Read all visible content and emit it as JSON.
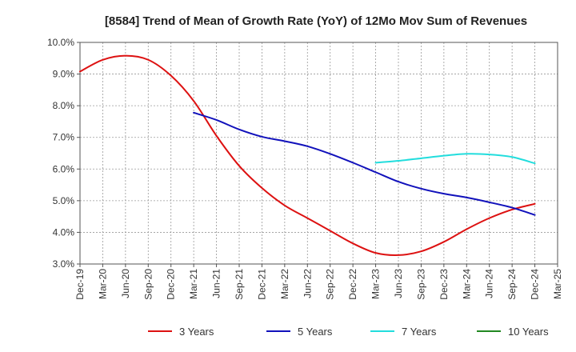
{
  "chart_data": {
    "type": "line",
    "title": "[8584]  Trend of Mean of Growth Rate (YoY) of 12Mo Mov Sum of Revenues",
    "xlabel": "",
    "ylabel": "",
    "categories": [
      "Dec-19",
      "Mar-20",
      "Jun-20",
      "Sep-20",
      "Dec-20",
      "Mar-21",
      "Jun-21",
      "Sep-21",
      "Dec-21",
      "Mar-22",
      "Jun-22",
      "Sep-22",
      "Dec-22",
      "Mar-23",
      "Jun-23",
      "Sep-23",
      "Dec-23",
      "Mar-24",
      "Jun-24",
      "Sep-24",
      "Dec-24",
      "Mar-25"
    ],
    "ylim": [
      3.0,
      10.0
    ],
    "yticks": [
      3.0,
      4.0,
      5.0,
      6.0,
      7.0,
      8.0,
      9.0,
      10.0
    ],
    "ytick_labels": [
      "3.0%",
      "4.0%",
      "5.0%",
      "6.0%",
      "7.0%",
      "8.0%",
      "9.0%",
      "10.0%"
    ],
    "grid": true,
    "legend_position": "bottom",
    "series": [
      {
        "name": "3 Years",
        "color": "#dd1111",
        "values": [
          9.08,
          9.45,
          9.58,
          9.45,
          8.95,
          8.15,
          7.05,
          6.1,
          5.4,
          4.85,
          4.45,
          4.05,
          3.65,
          3.35,
          3.28,
          3.4,
          3.7,
          4.1,
          4.45,
          4.72,
          4.9,
          null
        ]
      },
      {
        "name": "5 Years",
        "color": "#1111bb",
        "values": [
          null,
          null,
          null,
          null,
          null,
          7.78,
          7.55,
          7.25,
          7.02,
          6.88,
          6.72,
          6.48,
          6.2,
          5.9,
          5.6,
          5.38,
          5.22,
          5.1,
          4.95,
          4.78,
          4.55,
          null
        ]
      },
      {
        "name": "7 Years",
        "color": "#22dddd",
        "values": [
          null,
          null,
          null,
          null,
          null,
          null,
          null,
          null,
          null,
          null,
          null,
          null,
          null,
          6.2,
          6.26,
          6.34,
          6.42,
          6.48,
          6.46,
          6.38,
          6.18,
          null
        ]
      },
      {
        "name": "10 Years",
        "color": "#228822",
        "values": [
          null,
          null,
          null,
          null,
          null,
          null,
          null,
          null,
          null,
          null,
          null,
          null,
          null,
          null,
          null,
          null,
          null,
          null,
          null,
          null,
          null,
          null
        ]
      }
    ]
  }
}
